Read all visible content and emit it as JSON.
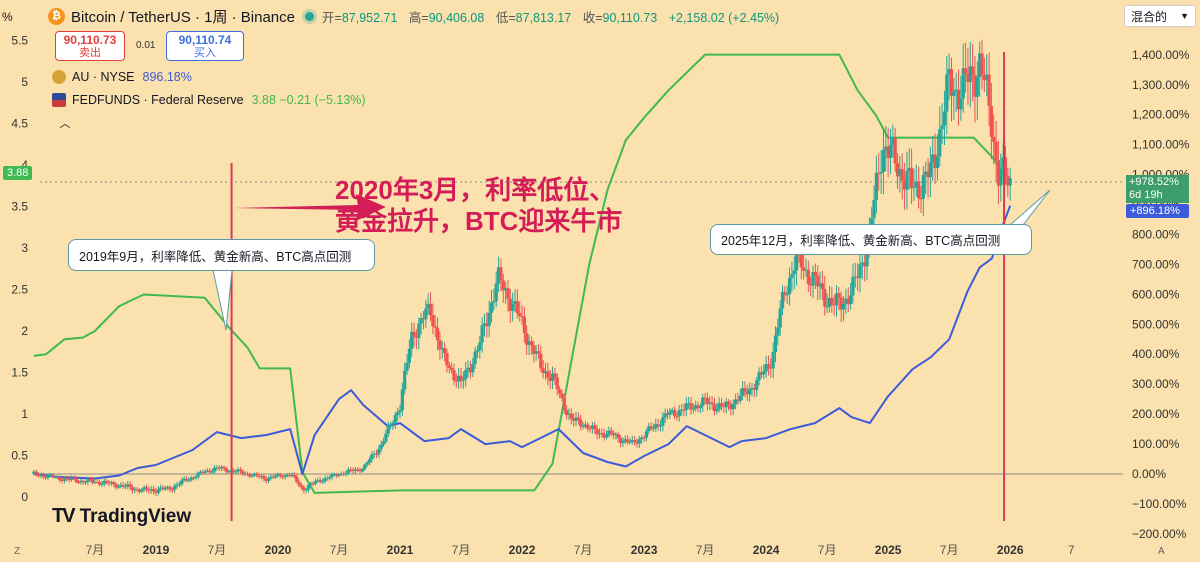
{
  "header": {
    "coin_glyph": "₿",
    "symbol": "Bitcoin / TetherUS · 1周 · Binance",
    "ohlc": [
      {
        "label": "开=",
        "value": "87,952.71"
      },
      {
        "label": "高=",
        "value": "90,406.08"
      },
      {
        "label": "低=",
        "value": "87,813.17"
      },
      {
        "label": "收=",
        "value": "90,110.73"
      }
    ],
    "change": "+2,158.02 (+2.45%)"
  },
  "trade": {
    "sell_price": "90,110.73",
    "sell_label": "卖出",
    "spread": "0.01",
    "buy_price": "90,110.74",
    "buy_label": "买入"
  },
  "legends": [
    {
      "name": "AU · NYSE",
      "value": "896.18%",
      "color": "#3b5bdb"
    },
    {
      "name": "FEDFUNDS · Federal Reserve",
      "value": "3.88  −0.21 (−5.13%)",
      "color": "#3fb950"
    }
  ],
  "mode_button": "混合的",
  "left_axis_unit": "%",
  "big_annotation": {
    "line1": "2020年3月，利率低位、",
    "line2": "黄金拉升，BTC迎来牛市"
  },
  "callouts": {
    "c2019": "2019年9月，利率降低、黄金新高、BTC高点回测",
    "c2025": "2025年12月，利率降低、黄金新高、BTC高点回测"
  },
  "watermark": "TradingView",
  "badges": {
    "fedfunds": "3.88",
    "btc_pct": "+978.52%",
    "countdown": "6d 19h",
    "au_pct": "+896.18%"
  },
  "corner": {
    "left": "Z",
    "right": "A"
  },
  "chart_data": {
    "type": "line",
    "left_axis": {
      "ticks": [
        "5.5",
        "5",
        "4.5",
        "4",
        "3.5",
        "3",
        "2.5",
        "2",
        "1.5",
        "1",
        "0.5",
        "0"
      ],
      "range": [
        0,
        5.5
      ]
    },
    "right_axis": {
      "ticks": [
        "1,400.00%",
        "1,300.00%",
        "1,200.00%",
        "1,100.00%",
        "1,000.00%",
        "900.00%",
        "800.00%",
        "700.00%",
        "600.00%",
        "500.00%",
        "400.00%",
        "300.00%",
        "200.00%",
        "100.00%",
        "0.00%",
        "−100.00%",
        "−200.00%"
      ],
      "range": [
        -200,
        1400
      ]
    },
    "x_ticks": [
      {
        "label": "7月",
        "t": 2018.5,
        "bold": false
      },
      {
        "label": "2019",
        "t": 2019.0,
        "bold": true
      },
      {
        "label": "7月",
        "t": 2019.5,
        "bold": false
      },
      {
        "label": "2020",
        "t": 2020.0,
        "bold": true
      },
      {
        "label": "7月",
        "t": 2020.5,
        "bold": false
      },
      {
        "label": "2021",
        "t": 2021.0,
        "bold": true
      },
      {
        "label": "7月",
        "t": 2021.5,
        "bold": false
      },
      {
        "label": "2022",
        "t": 2022.0,
        "bold": true
      },
      {
        "label": "7月",
        "t": 2022.5,
        "bold": false
      },
      {
        "label": "2023",
        "t": 2023.0,
        "bold": true
      },
      {
        "label": "7月",
        "t": 2023.5,
        "bold": false
      },
      {
        "label": "2024",
        "t": 2024.0,
        "bold": true
      },
      {
        "label": "7月",
        "t": 2024.5,
        "bold": false
      },
      {
        "label": "2025",
        "t": 2025.0,
        "bold": true
      },
      {
        "label": "7月",
        "t": 2025.5,
        "bold": false
      },
      {
        "label": "2026",
        "t": 2026.0,
        "bold": true
      },
      {
        "label": "7",
        "t": 2026.5,
        "bold": false
      }
    ],
    "series": [
      {
        "name": "FEDFUNDS · Federal Reserve",
        "axis": "left",
        "color": "#3fb950",
        "points": [
          [
            2018.0,
            1.7
          ],
          [
            2018.1,
            1.72
          ],
          [
            2018.25,
            1.9
          ],
          [
            2018.4,
            1.92
          ],
          [
            2018.5,
            2.0
          ],
          [
            2018.7,
            2.3
          ],
          [
            2018.9,
            2.44
          ],
          [
            2019.4,
            2.4
          ],
          [
            2019.6,
            2.04
          ],
          [
            2019.75,
            1.8
          ],
          [
            2019.85,
            1.55
          ],
          [
            2020.1,
            1.55
          ],
          [
            2020.2,
            0.3
          ],
          [
            2020.3,
            0.05
          ],
          [
            2021.0,
            0.08
          ],
          [
            2022.0,
            0.08
          ],
          [
            2022.1,
            0.08
          ],
          [
            2022.25,
            0.4
          ],
          [
            2022.4,
            1.6
          ],
          [
            2022.55,
            2.8
          ],
          [
            2022.7,
            3.7
          ],
          [
            2022.85,
            4.3
          ],
          [
            2023.0,
            4.57
          ],
          [
            2023.2,
            4.9
          ],
          [
            2023.5,
            5.33
          ],
          [
            2024.0,
            5.33
          ],
          [
            2024.6,
            5.33
          ],
          [
            2024.75,
            4.9
          ],
          [
            2024.9,
            4.6
          ],
          [
            2025.0,
            4.33
          ],
          [
            2025.7,
            4.33
          ],
          [
            2025.85,
            4.1
          ],
          [
            2025.95,
            3.88
          ]
        ]
      },
      {
        "name": "AU · NYSE",
        "axis": "right",
        "color": "#3b5bdb",
        "points": [
          [
            2018.0,
            0
          ],
          [
            2018.2,
            -10
          ],
          [
            2018.5,
            -15
          ],
          [
            2018.7,
            -5
          ],
          [
            2018.85,
            20
          ],
          [
            2019.0,
            30
          ],
          [
            2019.3,
            80
          ],
          [
            2019.5,
            140
          ],
          [
            2019.7,
            120
          ],
          [
            2019.9,
            130
          ],
          [
            2020.1,
            150
          ],
          [
            2020.2,
            0
          ],
          [
            2020.3,
            130
          ],
          [
            2020.5,
            250
          ],
          [
            2020.6,
            280
          ],
          [
            2020.7,
            230
          ],
          [
            2020.9,
            160
          ],
          [
            2021.0,
            170
          ],
          [
            2021.2,
            110
          ],
          [
            2021.4,
            120
          ],
          [
            2021.5,
            150
          ],
          [
            2021.7,
            100
          ],
          [
            2021.9,
            110
          ],
          [
            2022.0,
            90
          ],
          [
            2022.2,
            130
          ],
          [
            2022.3,
            150
          ],
          [
            2022.5,
            70
          ],
          [
            2022.7,
            40
          ],
          [
            2022.85,
            25
          ],
          [
            2023.0,
            60
          ],
          [
            2023.2,
            100
          ],
          [
            2023.35,
            160
          ],
          [
            2023.5,
            130
          ],
          [
            2023.7,
            90
          ],
          [
            2023.8,
            110
          ],
          [
            2024.0,
            120
          ],
          [
            2024.2,
            150
          ],
          [
            2024.4,
            170
          ],
          [
            2024.6,
            220
          ],
          [
            2024.7,
            190
          ],
          [
            2024.85,
            170
          ],
          [
            2025.0,
            260
          ],
          [
            2025.2,
            350
          ],
          [
            2025.35,
            390
          ],
          [
            2025.5,
            450
          ],
          [
            2025.65,
            610
          ],
          [
            2025.75,
            690
          ],
          [
            2025.85,
            720
          ],
          [
            2025.92,
            810
          ],
          [
            2026.0,
            896
          ]
        ]
      },
      {
        "name": "Bitcoin / TetherUS",
        "axis": "right",
        "type": "candlestick",
        "points": [
          [
            2018.0,
            0
          ],
          [
            2018.3,
            -20
          ],
          [
            2018.6,
            -30
          ],
          [
            2018.9,
            -55
          ],
          [
            2019.1,
            -50
          ],
          [
            2019.35,
            0
          ],
          [
            2019.5,
            20
          ],
          [
            2019.7,
            5
          ],
          [
            2019.9,
            -15
          ],
          [
            2020.1,
            0
          ],
          [
            2020.2,
            -50
          ],
          [
            2020.35,
            -20
          ],
          [
            2020.5,
            0
          ],
          [
            2020.7,
            20
          ],
          [
            2020.85,
            100
          ],
          [
            2021.0,
            230
          ],
          [
            2021.1,
            470
          ],
          [
            2021.25,
            550
          ],
          [
            2021.35,
            390
          ],
          [
            2021.5,
            300
          ],
          [
            2021.65,
            430
          ],
          [
            2021.8,
            650
          ],
          [
            2021.9,
            590
          ],
          [
            2022.0,
            500
          ],
          [
            2022.15,
            360
          ],
          [
            2022.25,
            320
          ],
          [
            2022.4,
            180
          ],
          [
            2022.5,
            170
          ],
          [
            2022.6,
            140
          ],
          [
            2022.75,
            130
          ],
          [
            2022.9,
            100
          ],
          [
            2023.0,
            130
          ],
          [
            2023.2,
            200
          ],
          [
            2023.35,
            220
          ],
          [
            2023.5,
            240
          ],
          [
            2023.65,
            220
          ],
          [
            2023.8,
            260
          ],
          [
            2023.95,
            320
          ],
          [
            2024.05,
            390
          ],
          [
            2024.15,
            610
          ],
          [
            2024.25,
            720
          ],
          [
            2024.4,
            640
          ],
          [
            2024.55,
            560
          ],
          [
            2024.7,
            600
          ],
          [
            2024.85,
            800
          ],
          [
            2024.95,
            1100
          ],
          [
            2025.05,
            1050
          ],
          [
            2025.2,
            950
          ],
          [
            2025.35,
            1000
          ],
          [
            2025.5,
            1300
          ],
          [
            2025.6,
            1280
          ],
          [
            2025.75,
            1370
          ],
          [
            2025.85,
            1180
          ],
          [
            2025.9,
            1000
          ],
          [
            2026.0,
            978
          ]
        ]
      }
    ],
    "markers": [
      {
        "type": "vertical-line",
        "t": 2019.62,
        "color": "#d83a56"
      },
      {
        "type": "vertical-line",
        "t": 2025.95,
        "color": "#d83a56"
      },
      {
        "type": "arrow",
        "from_t": 2019.62,
        "to_t": 2020.95,
        "color": "#d41d57"
      }
    ]
  }
}
